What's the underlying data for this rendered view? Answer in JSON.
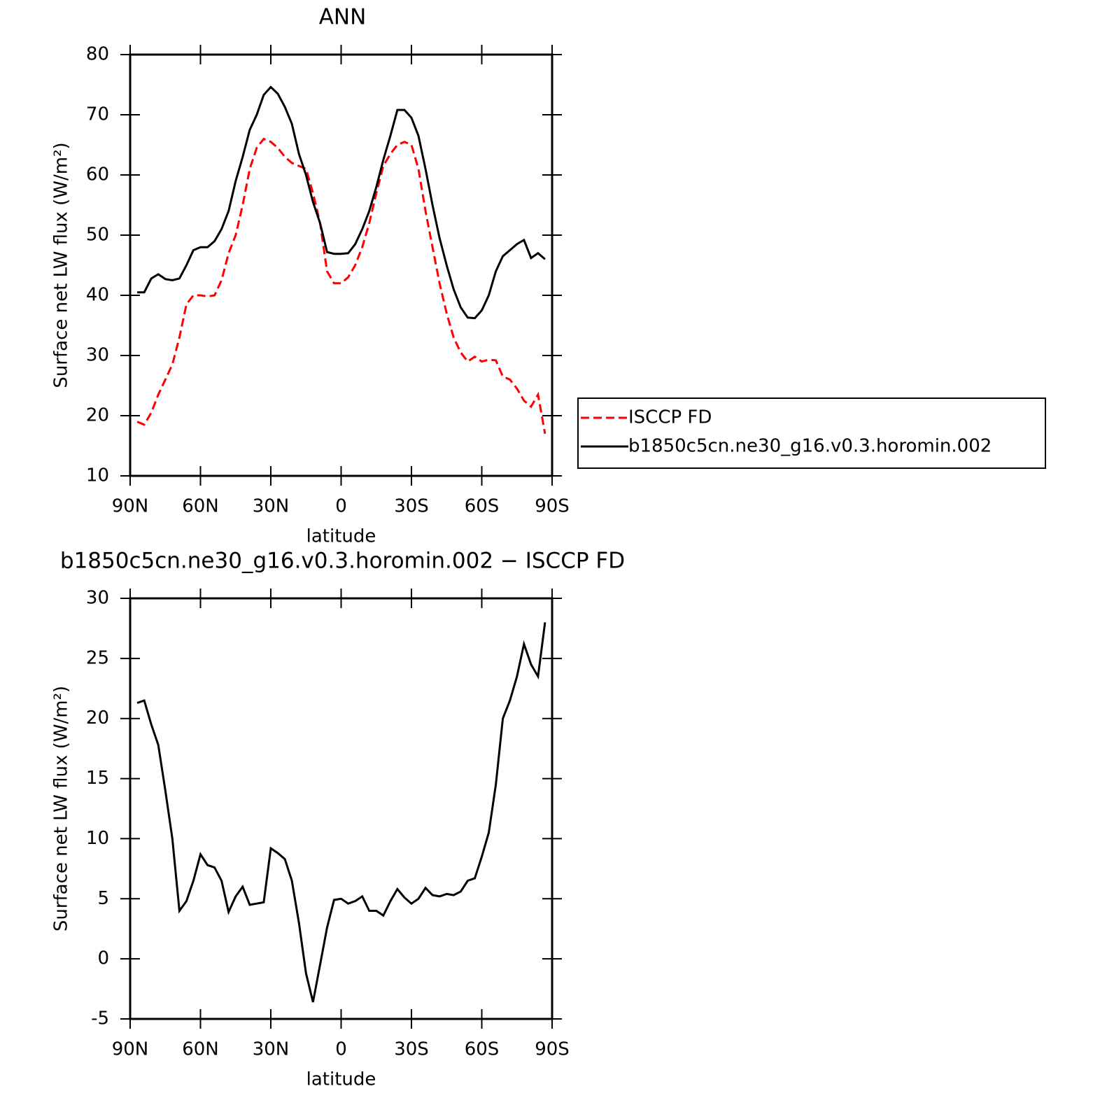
{
  "chart_data": [
    {
      "type": "line",
      "title": "ANN",
      "xlabel": "latitude",
      "ylabel": "Surface net LW flux (W/m²)",
      "x": [
        87,
        84,
        81,
        78,
        75,
        72,
        69,
        66,
        63,
        60,
        57,
        54,
        51,
        48,
        45,
        42,
        39,
        36,
        33,
        30,
        27,
        24,
        21,
        18,
        15,
        12,
        9,
        6,
        3,
        0,
        -3,
        -6,
        -9,
        -12,
        -15,
        -18,
        -21,
        -24,
        -27,
        -30,
        -33,
        -36,
        -39,
        -42,
        -45,
        -48,
        -51,
        -54,
        -57,
        -60,
        -63,
        -66,
        -69,
        -72,
        -75,
        -78,
        -81,
        -84,
        -87
      ],
      "xlim": [
        90,
        -90
      ],
      "xticks": [
        {
          "value": 90,
          "label": "90N"
        },
        {
          "value": 60,
          "label": "60N"
        },
        {
          "value": 30,
          "label": "30N"
        },
        0,
        {
          "value": -30,
          "label": "30S"
        },
        {
          "value": -60,
          "label": "60S"
        },
        {
          "value": -90,
          "label": "90S"
        }
      ],
      "ylim": [
        10,
        80
      ],
      "yticks": [
        10,
        20,
        30,
        40,
        50,
        60,
        70,
        80
      ],
      "legend": "right",
      "series": [
        {
          "name": "ISCCP FD",
          "color": "#ff0000",
          "style": "dashed",
          "values": [
            19,
            18.5,
            20.5,
            23.5,
            26,
            28.5,
            33,
            38.5,
            40,
            40,
            39.8,
            40,
            42.5,
            47,
            50,
            55,
            61,
            64.5,
            66,
            65.5,
            64.5,
            63,
            62,
            61.5,
            61,
            57,
            52,
            44,
            42,
            42,
            43,
            45,
            48,
            52,
            57,
            61.5,
            63.5,
            65,
            65.5,
            65,
            61,
            54,
            48,
            42,
            37,
            33,
            30.5,
            29,
            29.8,
            29,
            29.3,
            29.2,
            26.5,
            26,
            24.5,
            22.5,
            21.5,
            23.5,
            17
          ]
        },
        {
          "name": "b1850c5cn.ne30_g16.v0.3.horomin.002",
          "color": "#000000",
          "style": "solid",
          "values": [
            40.5,
            40.5,
            42.8,
            43.5,
            42.7,
            42.5,
            42.8,
            45,
            47.5,
            48,
            48,
            49,
            51,
            54,
            59,
            63,
            67.5,
            70,
            73.3,
            74.6,
            73.5,
            71.3,
            68.5,
            63.5,
            60,
            55.5,
            52,
            47.2,
            46.9,
            46.9,
            47,
            48.5,
            51,
            54,
            58,
            62.5,
            66.5,
            70.8,
            70.8,
            69.5,
            66.5,
            61,
            55,
            49.5,
            45,
            41,
            38,
            36.3,
            36.2,
            37.5,
            40,
            44,
            46.5,
            47.5,
            48.5,
            49.2,
            46.2,
            47,
            46
          ]
        }
      ]
    },
    {
      "type": "line",
      "title": "b1850c5cn.ne30_g16.v0.3.horomin.002 − ISCCP FD",
      "xlabel": "latitude",
      "ylabel": "Surface net LW flux (W/m²)",
      "x": [
        87,
        84,
        81,
        78,
        75,
        72,
        69,
        66,
        63,
        60,
        57,
        54,
        51,
        48,
        45,
        42,
        39,
        36,
        33,
        30,
        27,
        24,
        21,
        18,
        15,
        12,
        9,
        6,
        3,
        0,
        -3,
        -6,
        -9,
        -12,
        -15,
        -18,
        -21,
        -24,
        -27,
        -30,
        -33,
        -36,
        -39,
        -42,
        -45,
        -48,
        -51,
        -54,
        -57,
        -60,
        -63,
        -66,
        -69,
        -72,
        -75,
        -78,
        -81,
        -84,
        -87
      ],
      "xlim": [
        90,
        -90
      ],
      "xticks": [
        {
          "value": 90,
          "label": "90N"
        },
        {
          "value": 60,
          "label": "60N"
        },
        {
          "value": 30,
          "label": "30N"
        },
        0,
        {
          "value": -30,
          "label": "30S"
        },
        {
          "value": -60,
          "label": "60S"
        },
        {
          "value": -90,
          "label": "90S"
        }
      ],
      "ylim": [
        -5,
        30
      ],
      "yticks": [
        -5,
        0,
        5,
        10,
        15,
        20,
        25,
        30
      ],
      "series": [
        {
          "color": "#000000",
          "style": "solid",
          "values": [
            21.3,
            21.5,
            19.5,
            17.8,
            14,
            10,
            4,
            4.8,
            6.5,
            8.7,
            7.8,
            7.6,
            6.5,
            3.9,
            5.2,
            6,
            4.5,
            4.6,
            4.7,
            9.2,
            8.8,
            8.3,
            6.5,
            3,
            -1.2,
            -3.6,
            -0.5,
            2.6,
            4.9,
            5,
            4.6,
            4.8,
            5.2,
            4,
            4,
            3.6,
            4.8,
            5.8,
            5.1,
            4.6,
            5,
            5.9,
            5.3,
            5.2,
            5.4,
            5.3,
            5.6,
            6.5,
            6.7,
            8.5,
            10.5,
            14.5,
            20,
            21.5,
            23.5,
            26.2,
            24.5,
            23.5,
            28
          ]
        }
      ]
    }
  ]
}
